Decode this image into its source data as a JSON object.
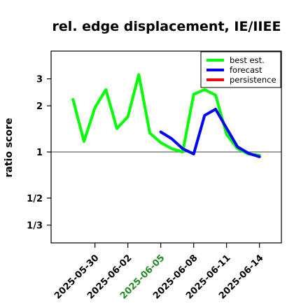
{
  "chart_data": {
    "type": "line",
    "title": "rel. edge displacement, IE/IIEE",
    "ylabel": "ratio score",
    "xlabel": "",
    "y_scale": "log",
    "ylim": [
      0.255,
      4.55
    ],
    "yticks": [
      {
        "value": 0.3333,
        "label": "1/3"
      },
      {
        "value": 0.5,
        "label": "1/2"
      },
      {
        "value": 1,
        "label": "1"
      },
      {
        "value": 2,
        "label": "2"
      },
      {
        "value": 3,
        "label": "3"
      }
    ],
    "xlim": [
      "2025-05-26",
      "2025-06-16"
    ],
    "xticks": [
      {
        "date": "2025-05-30",
        "label": "2025-05-30",
        "color": "#000000"
      },
      {
        "date": "2025-06-02",
        "label": "2025-06-02",
        "color": "#000000"
      },
      {
        "date": "2025-06-05",
        "label": "2025-06-05",
        "color": "#228b22"
      },
      {
        "date": "2025-06-08",
        "label": "2025-06-08",
        "color": "#000000"
      },
      {
        "date": "2025-06-11",
        "label": "2025-06-11",
        "color": "#000000"
      },
      {
        "date": "2025-06-14",
        "label": "2025-06-14",
        "color": "#000000"
      }
    ],
    "reference_line": 1,
    "legend_position": "top-right",
    "series": [
      {
        "name": "best est.",
        "color": "#00ff00",
        "x": [
          "2025-05-28",
          "2025-05-29",
          "2025-05-30",
          "2025-05-31",
          "2025-06-01",
          "2025-06-02",
          "2025-06-03",
          "2025-06-04",
          "2025-06-05",
          "2025-06-06",
          "2025-06-07",
          "2025-06-08",
          "2025-06-09",
          "2025-06-10",
          "2025-06-11",
          "2025-06-12",
          "2025-06-13",
          "2025-06-14"
        ],
        "y": [
          2.2,
          1.17,
          1.95,
          2.55,
          1.42,
          1.7,
          3.2,
          1.33,
          1.15,
          1.05,
          1.0,
          2.38,
          2.55,
          2.35,
          1.3,
          1.05,
          0.97,
          0.95
        ]
      },
      {
        "name": "forecast",
        "color": "#0000ff",
        "x": [
          "2025-06-05",
          "2025-06-06",
          "2025-06-07",
          "2025-06-08",
          "2025-06-09",
          "2025-06-10",
          "2025-06-11",
          "2025-06-12",
          "2025-06-13",
          "2025-06-14"
        ],
        "y": [
          1.35,
          1.22,
          1.05,
          0.97,
          1.73,
          1.9,
          1.43,
          1.08,
          0.98,
          0.93
        ]
      },
      {
        "name": "persistence",
        "color": "#ff0000",
        "x": [],
        "y": []
      }
    ]
  }
}
